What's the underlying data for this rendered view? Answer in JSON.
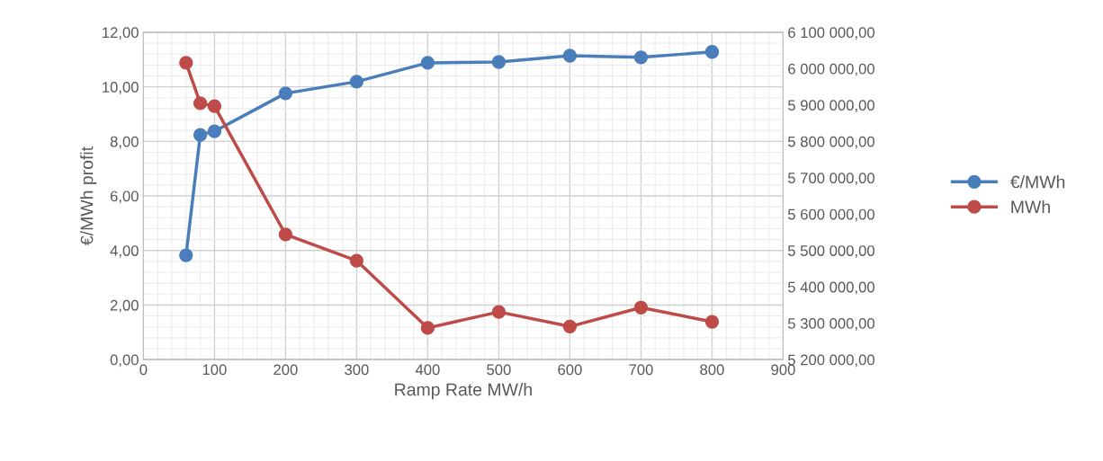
{
  "chart_data": {
    "type": "line",
    "xlabel": "Ramp Rate MW/h",
    "ylabel": "€/MWh profit",
    "x": [
      60,
      80,
      100,
      200,
      300,
      400,
      500,
      600,
      700,
      800
    ],
    "series": [
      {
        "name": "€/MWh",
        "color": "#4a7ebb",
        "values": [
          3.82,
          8.24,
          8.37,
          9.76,
          10.19,
          10.88,
          10.91,
          11.14,
          11.08,
          11.28
        ]
      },
      {
        "name": "MWh",
        "color": "#be4b48",
        "axis": "y2",
        "values": [
          6016000,
          5905000,
          5897000,
          5544000,
          5472000,
          5287000,
          5331000,
          5291000,
          5343000,
          5304000
        ]
      }
    ],
    "xlim": [
      0,
      900
    ],
    "xticks": [
      0,
      100,
      200,
      300,
      400,
      500,
      600,
      700,
      800,
      900
    ],
    "ylim": [
      0,
      12
    ],
    "yticks": [
      {
        "value": 0,
        "label": "0,00"
      },
      {
        "value": 2,
        "label": "2,00"
      },
      {
        "value": 4,
        "label": "4,00"
      },
      {
        "value": 6,
        "label": "6,00"
      },
      {
        "value": 8,
        "label": "8,00"
      },
      {
        "value": 10,
        "label": "10,00"
      },
      {
        "value": 12,
        "label": "12,00"
      }
    ],
    "y2lim": [
      5200000,
      6100000
    ],
    "y2ticks": [
      {
        "value": 5200000,
        "label": "5 200 000,00"
      },
      {
        "value": 5300000,
        "label": "5 300 000,00"
      },
      {
        "value": 5400000,
        "label": "5 400 000,00"
      },
      {
        "value": 5500000,
        "label": "5 500 000,00"
      },
      {
        "value": 5600000,
        "label": "5 600 000,00"
      },
      {
        "value": 5700000,
        "label": "5 700 000,00"
      },
      {
        "value": 5800000,
        "label": "5 800 000,00"
      },
      {
        "value": 5900000,
        "label": "5 900 000,00"
      },
      {
        "value": 6000000,
        "label": "6 000 000,00"
      },
      {
        "value": 6100000,
        "label": "6 100 000,00"
      }
    ],
    "grid": true,
    "legend": "right",
    "marker": "circle",
    "line_style": "solid"
  }
}
